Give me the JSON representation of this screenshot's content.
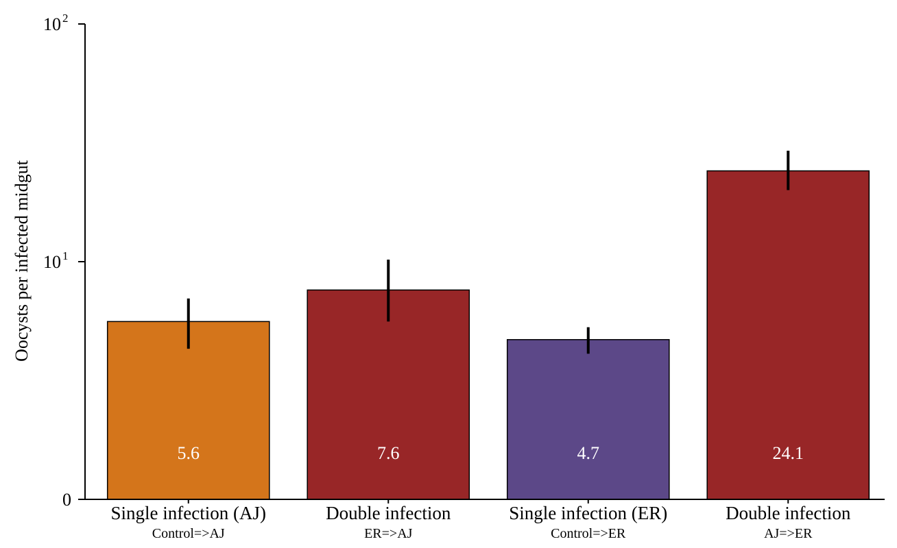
{
  "chart_data": {
    "type": "bar",
    "yscale": "log",
    "ylabel": "Oocysts per infected midgut",
    "yticks": [
      {
        "value": 1,
        "label": "0",
        "exp": ""
      },
      {
        "value": 10,
        "label": "10",
        "exp": "1"
      },
      {
        "value": 100,
        "label": "10",
        "exp": "2"
      }
    ],
    "ylim": [
      1,
      100
    ],
    "categories": [
      {
        "label": "Single infection (AJ)",
        "sub": "Control=>AJ"
      },
      {
        "label": "Double infection",
        "sub": "ER=>AJ"
      },
      {
        "label": "Single infection (ER)",
        "sub": "Control=>ER"
      },
      {
        "label": "Double infection",
        "sub": "AJ=>ER"
      }
    ],
    "values": [
      5.6,
      7.6,
      4.7,
      24.1
    ],
    "value_labels": [
      "5.6",
      "7.6",
      "4.7",
      "24.1"
    ],
    "error_low": [
      4.3,
      5.6,
      4.1,
      20.0
    ],
    "error_high": [
      7.0,
      10.2,
      5.3,
      29.3
    ],
    "colors": [
      "#D4751B",
      "#982627",
      "#5C4888",
      "#982627"
    ],
    "grid": false
  }
}
